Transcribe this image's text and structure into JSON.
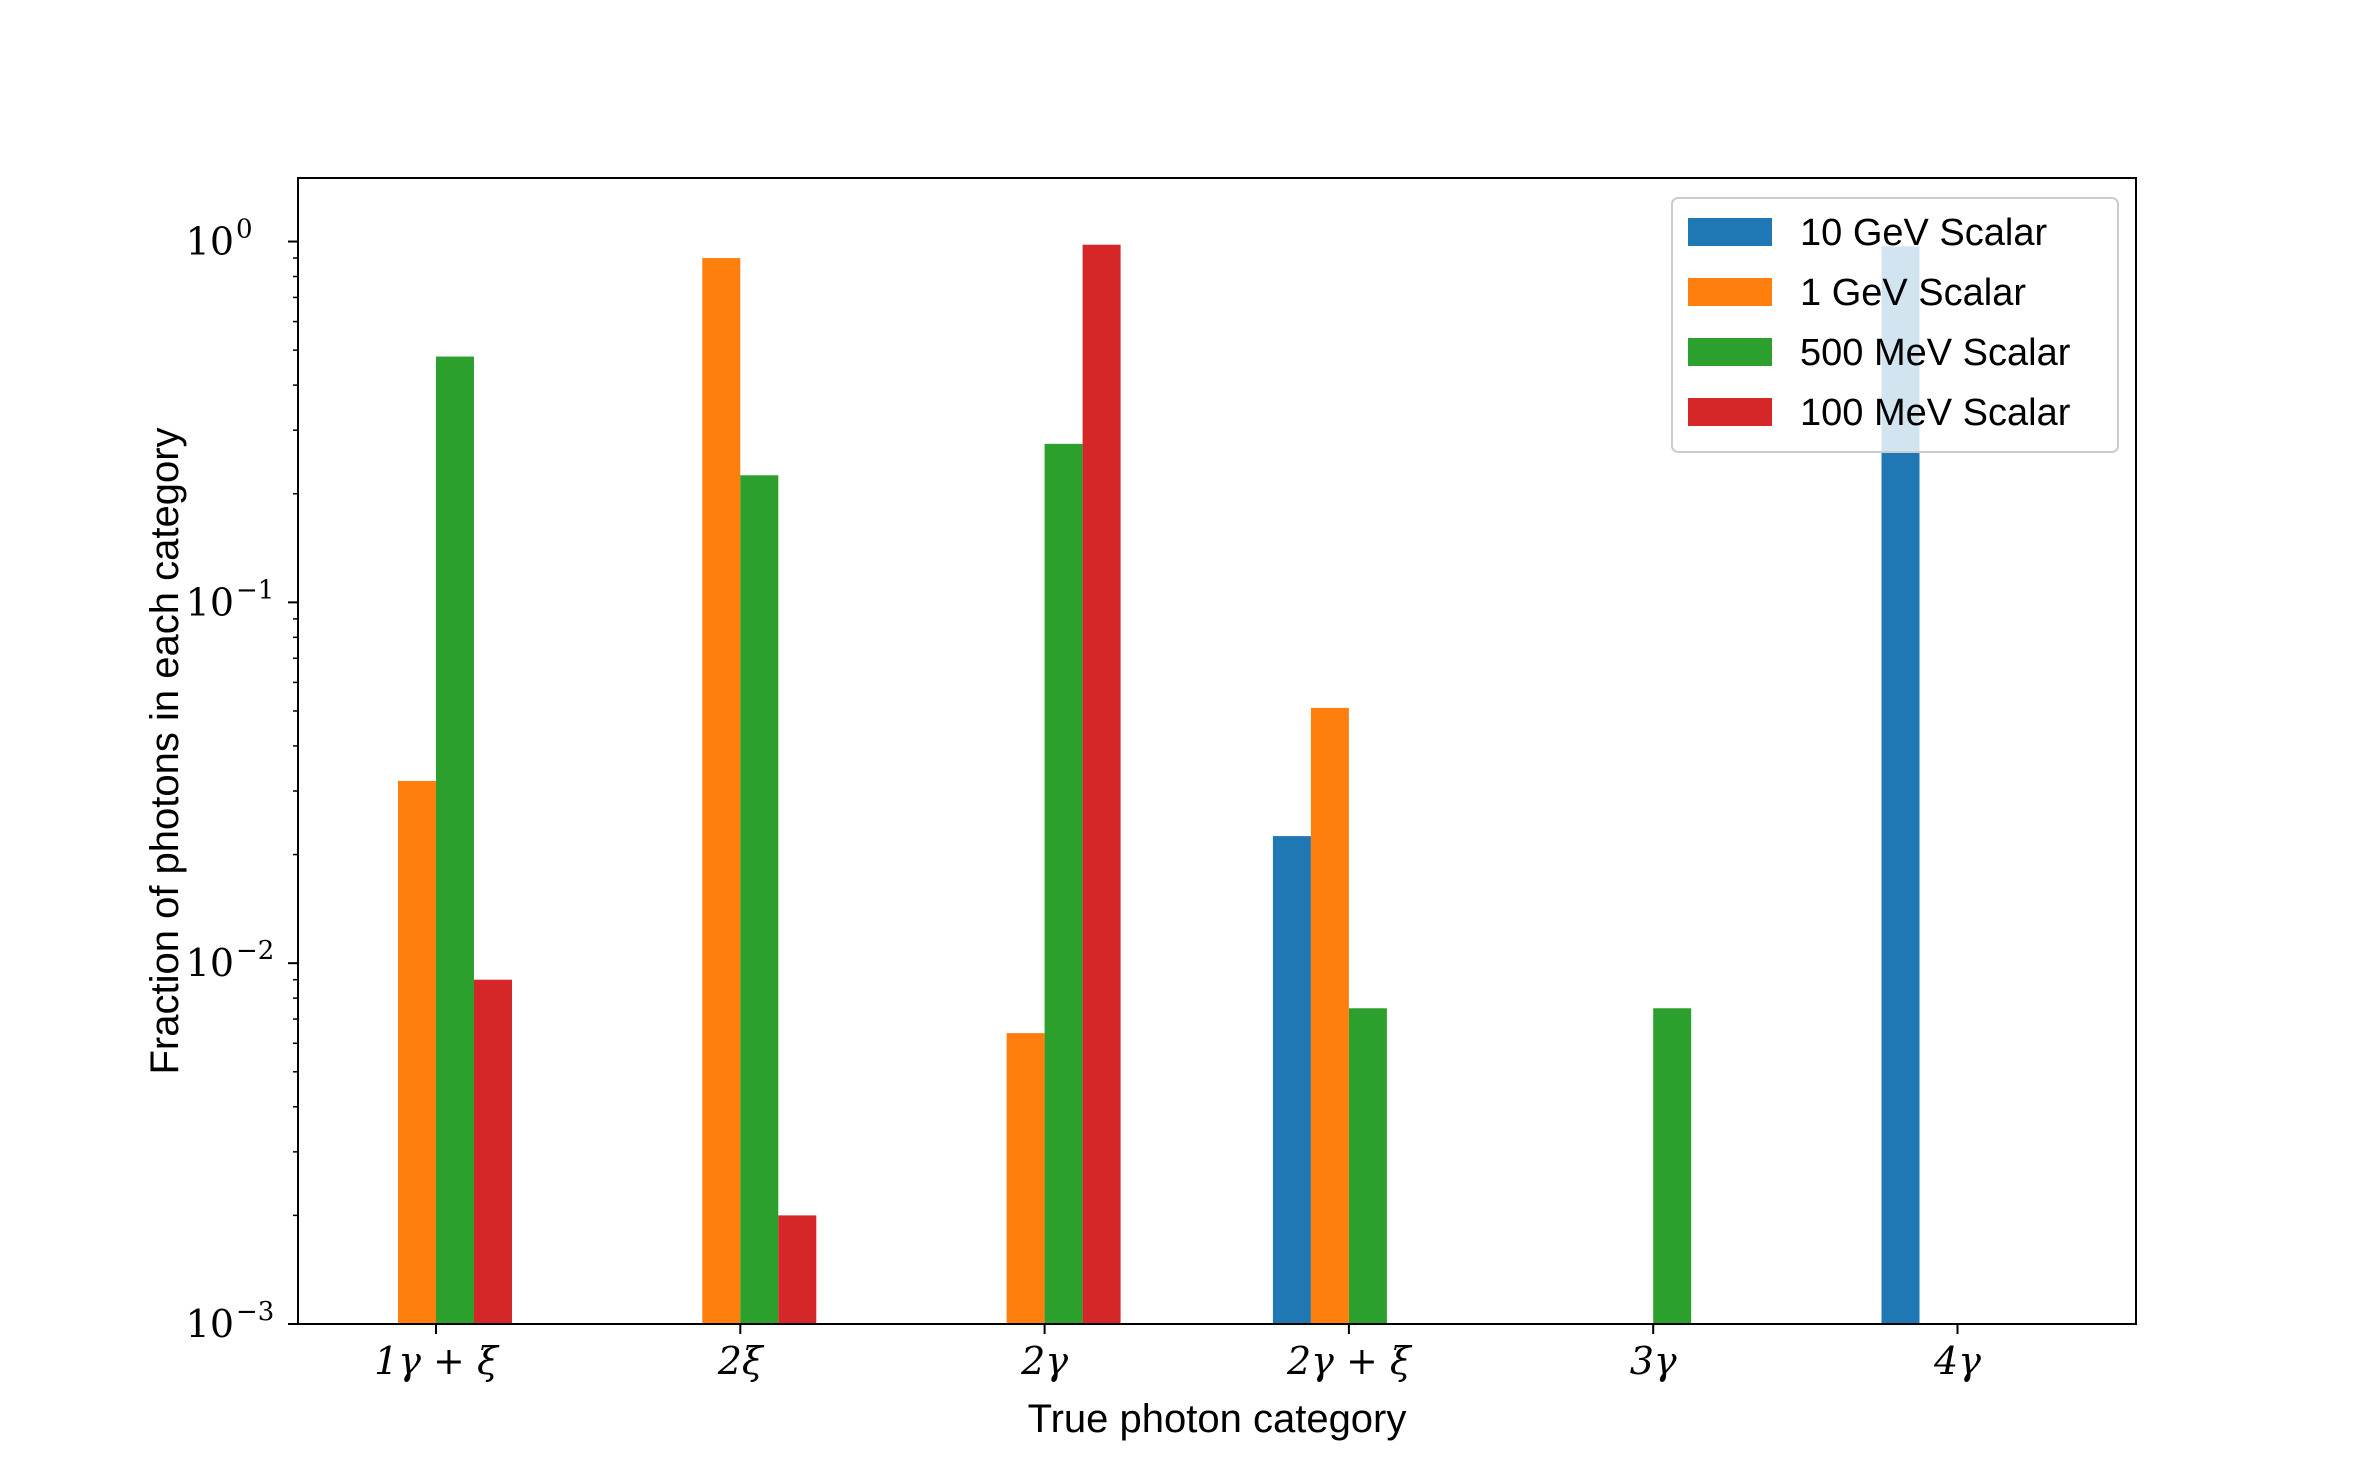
{
  "chart_data": {
    "type": "bar",
    "title": "",
    "xlabel": "True photon category",
    "ylabel": "Fraction of photons in each category",
    "yscale": "log",
    "ylim": [
      0.001,
      1.5
    ],
    "yticks": [
      {
        "value": 0.001,
        "base": "10",
        "exp": "−3"
      },
      {
        "value": 0.01,
        "base": "10",
        "exp": "−2"
      },
      {
        "value": 0.1,
        "base": "10",
        "exp": "−1"
      },
      {
        "value": 1,
        "base": "10",
        "exp": "0"
      }
    ],
    "categories": [
      "1γ + ξ",
      "2ξ",
      "2γ",
      "2γ + ξ",
      "3γ",
      "4γ"
    ],
    "series": [
      {
        "name": "10 GeV Scalar",
        "color": "#1f77b4",
        "values": [
          0,
          0,
          0,
          0.0225,
          0,
          0.97
        ]
      },
      {
        "name": "1 GeV Scalar",
        "color": "#ff7f0e",
        "values": [
          0.032,
          0.9,
          0.0064,
          0.051,
          0,
          0
        ]
      },
      {
        "name": "500 MeV Scalar",
        "color": "#2ca02c",
        "values": [
          0.48,
          0.225,
          0.275,
          0.0075,
          0.0075,
          0
        ]
      },
      {
        "name": "100 MeV Scalar",
        "color": "#d62728",
        "values": [
          0.009,
          0.002,
          0.98,
          0,
          0,
          0
        ]
      }
    ],
    "legend_position": "top-right",
    "grid": false
  }
}
